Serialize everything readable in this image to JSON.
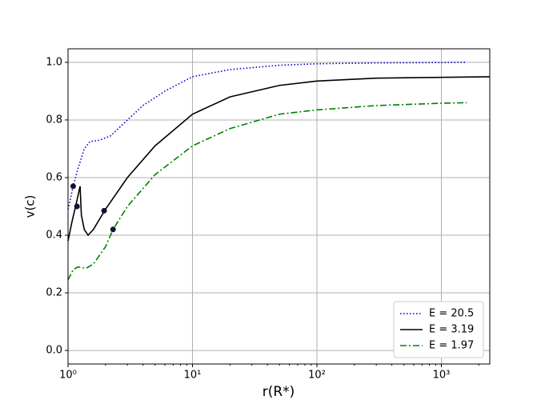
{
  "chart_data": {
    "type": "line",
    "x_label": "r(R*)",
    "y_label": "v(c)",
    "log_x": true,
    "grid": true,
    "xlim": [
      1,
      2450
    ],
    "ylim": [
      -0.047,
      1.047
    ],
    "xticks": [
      {
        "value": 1,
        "label": "10⁰"
      },
      {
        "value": 10,
        "label": "10¹"
      },
      {
        "value": 100,
        "label": "10²"
      },
      {
        "value": 1000,
        "label": "10³"
      }
    ],
    "yticks": [
      {
        "value": 0,
        "label": "0.0"
      },
      {
        "value": 0.2,
        "label": "0.2"
      },
      {
        "value": 0.4,
        "label": "0.4"
      },
      {
        "value": 0.6,
        "label": "0.6"
      },
      {
        "value": 0.8,
        "label": "0.8"
      },
      {
        "value": 1,
        "label": "1.0"
      }
    ],
    "legend": "lower right",
    "series": [
      {
        "name": "E = 20.5",
        "color": "#0000cc",
        "dash": "dotted",
        "x": [
          1,
          1.05,
          1.1,
          1.2,
          1.35,
          1.5,
          1.8,
          2.2,
          3,
          4,
          6,
          10,
          20,
          50,
          100,
          300,
          1600
        ],
        "values": [
          0.49,
          0.53,
          0.57,
          0.63,
          0.7,
          0.725,
          0.73,
          0.745,
          0.8,
          0.85,
          0.9,
          0.95,
          0.975,
          0.99,
          0.995,
          0.998,
          1.0
        ]
      },
      {
        "name": "E = 3.19",
        "color": "#000000",
        "dash": "solid",
        "x": [
          1,
          1.08,
          1.15,
          1.25,
          1.28,
          1.35,
          1.45,
          1.6,
          2,
          3,
          5,
          10,
          20,
          50,
          100,
          300,
          1000,
          2450
        ],
        "values": [
          0.38,
          0.45,
          0.5,
          0.57,
          0.47,
          0.42,
          0.4,
          0.42,
          0.49,
          0.6,
          0.71,
          0.82,
          0.88,
          0.92,
          0.935,
          0.945,
          0.948,
          0.95
        ]
      },
      {
        "name": "E = 1.97",
        "color": "#008000",
        "dash": "dashdot",
        "x": [
          1,
          1.1,
          1.2,
          1.4,
          1.6,
          2,
          2.3,
          3,
          5,
          10,
          20,
          50,
          100,
          300,
          1000,
          1600
        ],
        "values": [
          0.245,
          0.28,
          0.29,
          0.285,
          0.3,
          0.36,
          0.42,
          0.5,
          0.61,
          0.71,
          0.77,
          0.82,
          0.835,
          0.85,
          0.858,
          0.86
        ]
      }
    ],
    "markers": {
      "color": "#111133",
      "x": [
        1.1,
        1.18,
        1.95,
        2.3
      ],
      "values": [
        0.57,
        0.5,
        0.485,
        0.42
      ]
    }
  }
}
